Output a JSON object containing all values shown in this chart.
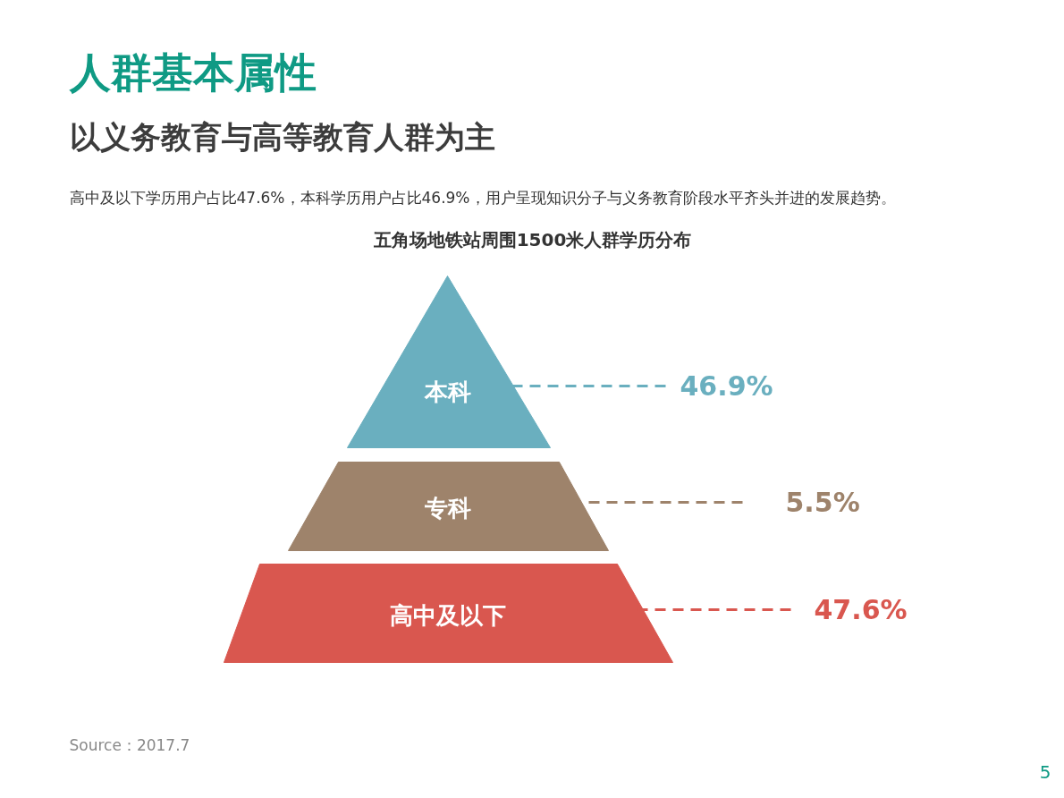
{
  "chart_data": {
    "type": "other",
    "title": "五角场地铁站周围1500米人群学历分布",
    "categories": [
      "本科",
      "专科",
      "高中及以下"
    ],
    "values": [
      46.9,
      5.5,
      47.6
    ],
    "value_labels": [
      "46.9%",
      "5.5%",
      "47.6%"
    ],
    "colors": [
      "#6aafbf",
      "#9e836b",
      "#d9574f"
    ],
    "annotations": [
      "人群基本属性",
      "以义务教育与高等教育人群为主",
      "高中及以下学历用户占比47.6%，本科学历用户占比46.9%，用户呈现知识分子与义务教育阶段水平齐头并进的发展趋势。",
      "Source：2017.7",
      "5"
    ]
  }
}
